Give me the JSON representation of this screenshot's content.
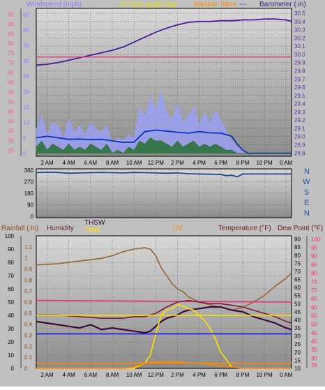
{
  "colors": {
    "frame": "#c0c0c0",
    "plot_top": "#d6d6d6",
    "plot_bottom": "#8a8a8a",
    "grid": "#555555",
    "axis_text": "#000000"
  },
  "chart_data": [
    {
      "type": "line",
      "header": {
        "windspeed": "Windspeed (mph)",
        "period": "24 hour graph day",
        "station": "Maribor Tabor",
        "dashes": "---",
        "barometer": "Barometer (.in)"
      },
      "xticks": [
        "2 AM",
        "4 AM",
        "6 AM",
        "8 AM",
        "10 AM",
        "12 PM",
        "2 PM",
        "4 PM",
        "6 PM",
        "8 PM",
        "10 PM",
        "0 AM"
      ],
      "xlim": [
        1,
        24.5
      ],
      "axes": {
        "left_outer": {
          "ticks": [
            25,
            30,
            35,
            40,
            45,
            50,
            55,
            60,
            65,
            70,
            75,
            80,
            85,
            90,
            95
          ],
          "ylim": [
            22,
            98
          ],
          "color": "#ff5aa0"
        },
        "left_inner": {
          "ticks": [
            0,
            5,
            10,
            15,
            20,
            25,
            30,
            35,
            40,
            45
          ],
          "ylim": [
            -1,
            47
          ],
          "color": "#8a7cff"
        },
        "right": {
          "ticks": [
            28.8,
            28.9,
            29.0,
            29.1,
            29.2,
            29.3,
            29.4,
            29.5,
            29.6,
            29.7,
            29.8,
            29.9,
            30.0,
            30.1,
            30.2,
            30.3,
            30.4,
            30.5
          ],
          "ylim": [
            28.76,
            30.56
          ],
          "color": "#5a2ca0"
        }
      },
      "series": [
        {
          "role": "barometer",
          "axis": "right",
          "color": "#4b1aa0",
          "x": [
            1,
            2,
            3,
            4,
            5,
            6,
            7,
            8,
            9,
            10,
            11,
            12,
            13,
            14,
            15,
            16,
            17,
            18,
            19,
            20,
            21,
            22,
            23,
            24,
            24.5
          ],
          "y": [
            29.87,
            29.88,
            29.9,
            29.93,
            29.96,
            29.99,
            30.02,
            30.05,
            30.09,
            30.15,
            30.21,
            30.27,
            30.32,
            30.36,
            30.39,
            30.4,
            30.4,
            30.41,
            30.41,
            30.42,
            30.42,
            30.43,
            30.43,
            30.42,
            30.4
          ]
        },
        {
          "role": "reference",
          "axis": "left_outer",
          "color": "#e0307a",
          "x": [
            1,
            24.5
          ],
          "y": [
            73,
            73
          ]
        },
        {
          "role": "gust",
          "axis": "left_inner",
          "color": "#9aa0ff",
          "x": [
            1,
            1.5,
            2,
            2.5,
            3,
            3.5,
            4,
            4.5,
            5,
            5.5,
            6,
            6.5,
            7,
            7.5,
            8,
            8.5,
            9,
            9.5,
            10,
            10.5,
            11,
            11.5,
            12,
            12.5,
            13,
            13.5,
            14,
            14.5,
            15,
            15.5,
            16,
            16.5,
            17,
            17.5,
            18,
            18.5,
            19,
            19.5,
            20,
            20.5,
            21,
            22,
            23,
            24,
            24.5
          ],
          "y": [
            8,
            12,
            6,
            10,
            9,
            5,
            11,
            7,
            9,
            6,
            10,
            8,
            7,
            9,
            3,
            5,
            4,
            6,
            5,
            15,
            12,
            18,
            14,
            20,
            13,
            11,
            16,
            10,
            12,
            15,
            9,
            13,
            10,
            14,
            11,
            7,
            4,
            2,
            1,
            0,
            0,
            0,
            0,
            0,
            0
          ]
        },
        {
          "role": "avg_wind",
          "axis": "left_inner",
          "color": "#1030c0",
          "x": [
            1,
            2,
            3,
            4,
            5,
            6,
            7,
            8,
            9,
            10,
            11,
            12,
            13,
            14,
            15,
            16,
            17,
            18,
            19,
            19.5,
            20,
            20.5,
            21,
            22,
            23,
            24,
            24.5
          ],
          "y": [
            5,
            5.5,
            5,
            4.5,
            4.6,
            4.4,
            4.5,
            4,
            3.5,
            3.6,
            7,
            7.5,
            7.2,
            6.8,
            6.5,
            7,
            6.6,
            6.5,
            5.5,
            3,
            1,
            0,
            0,
            0,
            0,
            0,
            0
          ]
        },
        {
          "role": "calm_wind",
          "axis": "left_inner",
          "color": "#1a6a1a",
          "x": [
            1,
            1.5,
            2,
            2.5,
            3,
            3.5,
            4,
            4.5,
            5,
            5.5,
            6,
            6.5,
            7,
            7.5,
            8,
            8.5,
            9,
            9.5,
            10,
            10.5,
            11,
            11.5,
            12,
            12.5,
            13,
            13.5,
            14,
            14.5,
            15,
            15.5,
            16,
            16.5,
            17,
            17.5,
            18,
            18.5,
            19,
            19.5,
            20,
            20.5,
            21,
            22,
            23,
            24,
            24.5
          ],
          "y": [
            2,
            4,
            1,
            3,
            2,
            1,
            3,
            1,
            2,
            1,
            3,
            2,
            1,
            3,
            0,
            1,
            0,
            2,
            1,
            4,
            3,
            5,
            4,
            4,
            3,
            2,
            4,
            2,
            3,
            4,
            2,
            3,
            2,
            3,
            2,
            1,
            1,
            0,
            0,
            0,
            0,
            0,
            0,
            0,
            0
          ]
        }
      ]
    },
    {
      "type": "line",
      "xlim": [
        1,
        24.5
      ],
      "yticks": [
        0,
        90,
        180,
        270,
        360
      ],
      "ylim": [
        -10,
        370
      ],
      "compass": [
        "N",
        "W",
        "S",
        "E",
        "N"
      ],
      "series": [
        {
          "role": "wind_direction",
          "color": "#1a4a8a",
          "x": [
            1,
            2,
            3,
            4,
            5,
            6,
            7,
            8,
            9,
            10,
            11,
            12,
            13,
            14,
            15,
            16,
            17,
            18,
            18.5,
            19,
            19.5,
            20,
            21,
            22,
            23,
            24,
            24.5
          ],
          "y": [
            340,
            344,
            342,
            336,
            338,
            340,
            342,
            340,
            338,
            342,
            340,
            338,
            336,
            338,
            332,
            330,
            328,
            326,
            316,
            320,
            308,
            330,
            330,
            330,
            330,
            330,
            330
          ]
        }
      ]
    },
    {
      "type": "line",
      "header": {
        "rainfall": "Rainfall (.in)",
        "humidity": "Humidity",
        "thsw": "THSW",
        "solar": "Solar",
        "uv": "UV",
        "temperature": "Temperature (°F)",
        "dew_point": "Dew Point (°F)"
      },
      "xticks": [
        "2 AM",
        "4 AM",
        "6 AM",
        "8 AM",
        "10 AM",
        "12 PM",
        "2 PM",
        "4 PM",
        "6 PM",
        "8 PM",
        "10 PM",
        "0 AM"
      ],
      "xlim": [
        1,
        24.5
      ],
      "axes": {
        "rain": {
          "ticks": [
            "0",
            "0.1",
            "0.2",
            "0.3",
            "0.4",
            "0.5",
            "0.6",
            "0.7",
            "0.8",
            "0.9",
            "1",
            "1.1"
          ],
          "ylim": [
            0,
            1.2
          ],
          "color": "#8a4a1a"
        },
        "humidity": {
          "ticks": [
            0,
            10,
            20,
            30,
            40,
            50,
            60,
            70,
            80,
            90,
            100
          ],
          "ylim": [
            0,
            100
          ],
          "color": "#000000"
        },
        "temperature": {
          "ticks": [
            10,
            15,
            20,
            25,
            30,
            35,
            40,
            45,
            50,
            55,
            60,
            65,
            70,
            75,
            80,
            85,
            90
          ],
          "ylim": [
            10,
            92
          ],
          "color": "#000000"
        },
        "dew_point": {
          "ticks": [
            26,
            30,
            35,
            40,
            45,
            50,
            55,
            60,
            65,
            70,
            75,
            80,
            85,
            90,
            95,
            100
          ],
          "ylim": [
            24,
            102
          ],
          "color": "#ff2a7a"
        }
      },
      "series": [
        {
          "role": "humidity",
          "axis": "humidity",
          "color": "#9a6230",
          "x": [
            1,
            3,
            5,
            7,
            8,
            9,
            10,
            11,
            11.5,
            12,
            12.5,
            13,
            13.5,
            14,
            14.5,
            15,
            16,
            17,
            18,
            19,
            20,
            21,
            22,
            23,
            24,
            24.5
          ],
          "y": [
            78,
            79,
            81,
            83,
            85,
            88,
            90,
            91,
            90,
            85,
            76,
            70,
            64,
            60,
            58,
            54,
            50,
            48,
            46,
            44,
            46,
            50,
            55,
            62,
            68,
            72
          ]
        },
        {
          "role": "dew_point",
          "axis": "dew_point",
          "color": "#e0307a",
          "x": [
            1,
            24.5
          ],
          "y": [
            64,
            63
          ]
        },
        {
          "role": "thsw",
          "axis": "temperature",
          "color": "#3a0a3a",
          "x": [
            1,
            2,
            3,
            4,
            5,
            6,
            7,
            8,
            9,
            10,
            11,
            11.5,
            12,
            12.5,
            13,
            13.5,
            14,
            14.5,
            15,
            16,
            17,
            18,
            19,
            20,
            21,
            22,
            23,
            24,
            24.5
          ],
          "y": [
            39,
            38,
            37,
            36,
            35,
            37,
            34,
            35,
            34,
            33,
            32,
            33,
            36,
            39,
            41,
            42,
            43,
            45,
            46,
            47,
            48,
            48,
            46,
            45,
            42,
            40,
            38,
            35,
            34
          ]
        },
        {
          "role": "temperature",
          "axis": "temperature",
          "color": "#7a1f3a",
          "x": [
            1,
            3,
            5,
            7,
            9,
            10,
            11,
            12,
            13,
            14,
            15,
            16,
            17,
            18,
            19,
            20,
            21,
            22,
            23,
            24,
            24.5
          ],
          "y": [
            43,
            43,
            42,
            41,
            41,
            42,
            42,
            44,
            48,
            51,
            52,
            51,
            50,
            50,
            49,
            48,
            46,
            44,
            42,
            39,
            38
          ]
        },
        {
          "role": "solar",
          "axis": "humidity",
          "color": "#ffe000",
          "x": [
            1,
            2,
            3,
            4,
            5,
            6,
            7,
            8,
            9,
            10,
            10.5,
            11,
            11.5,
            12,
            12.5,
            13,
            13.5,
            14,
            14.5,
            15,
            15.5,
            16,
            16.5,
            17,
            17.5,
            18,
            19,
            20,
            21,
            22,
            23,
            24,
            24.5
          ],
          "y": [
            0,
            0,
            0,
            0,
            0,
            0,
            0,
            0,
            0,
            0,
            2,
            4,
            10,
            26,
            40,
            44,
            45,
            48,
            47,
            45,
            44,
            40,
            36,
            30,
            22,
            12,
            1,
            0,
            0,
            0,
            0,
            0,
            0
          ]
        },
        {
          "role": "solar_limit",
          "axis": "humidity",
          "color": "#ffe000",
          "x": [
            1,
            24.5
          ],
          "y": [
            40,
            40
          ]
        },
        {
          "role": "uv",
          "axis": "humidity",
          "color": "#ff8a00",
          "x": [
            1,
            9,
            10,
            11,
            12,
            13,
            14,
            15,
            16,
            17,
            18,
            19,
            20,
            24.5
          ],
          "y": [
            0,
            0,
            1,
            4,
            5,
            5,
            5,
            4,
            4,
            3,
            2,
            1,
            0,
            0
          ]
        },
        {
          "role": "uv_limit",
          "axis": "humidity",
          "color": "#ff8a00",
          "x": [
            1,
            24.5
          ],
          "y": [
            4,
            4
          ]
        },
        {
          "role": "rain_flat",
          "axis": "humidity",
          "color": "#1a1ae0",
          "x": [
            1,
            24.5
          ],
          "y": [
            26,
            26
          ]
        }
      ]
    }
  ]
}
